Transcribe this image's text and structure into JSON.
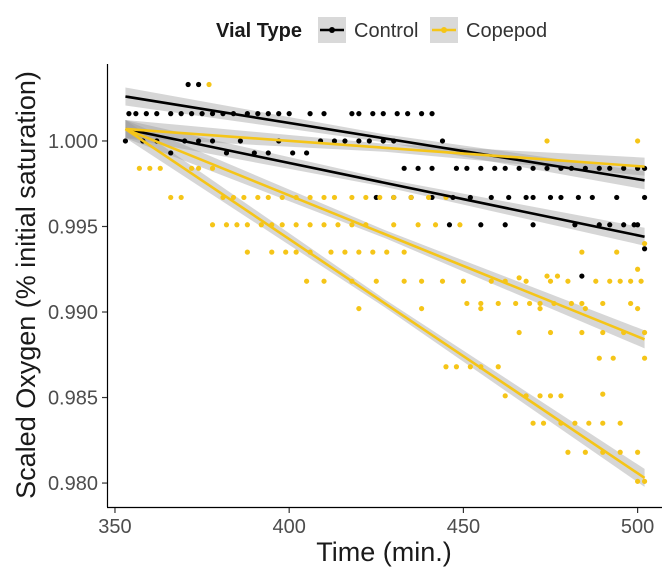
{
  "chart_data": {
    "type": "scatter",
    "xlabel": "Time (min.)",
    "ylabel": "Scaled Oxygen (% initial saturation)",
    "xlim": [
      348,
      507
    ],
    "ylim": [
      0.9786,
      1.0045
    ],
    "x_ticks": [
      350,
      400,
      450,
      500
    ],
    "x_tick_labels": [
      "350",
      "400",
      "450",
      "500"
    ],
    "y_ticks": [
      0.98,
      0.985,
      0.99,
      0.995,
      1.0
    ],
    "y_tick_labels": [
      "0.980",
      "0.985",
      "0.990",
      "0.995",
      "1.000"
    ],
    "grid": false,
    "legend": {
      "title": "Vial Type",
      "position": "top",
      "entries": [
        {
          "label": "Control",
          "color": "#000000"
        },
        {
          "label": "Copepod",
          "color": "#F5C518"
        }
      ]
    },
    "series": [
      {
        "name": "Control",
        "color": "#000000",
        "fits": [
          {
            "x": [
              353,
              502
            ],
            "y": [
              1.0026,
              0.9977
            ]
          },
          {
            "x": [
              353,
              502
            ],
            "y": [
              1.0007,
              0.9944
            ]
          }
        ],
        "points": [
          [
            353,
            1.0
          ],
          [
            354,
            1.0016
          ],
          [
            356,
            1.0016
          ],
          [
            359,
            1.0016
          ],
          [
            362,
            1.0016
          ],
          [
            366,
            1.0016
          ],
          [
            369,
            1.0016
          ],
          [
            372,
            1.0016
          ],
          [
            371,
            1.0033
          ],
          [
            374,
            1.0033
          ],
          [
            375,
            1.0016
          ],
          [
            378,
            1.0016
          ],
          [
            381,
            1.0016
          ],
          [
            384,
            1.0016
          ],
          [
            388,
            1.0016
          ],
          [
            391,
            1.0016
          ],
          [
            394,
            1.0016
          ],
          [
            397,
            1.0016
          ],
          [
            400,
            1.0016
          ],
          [
            406,
            1.0016
          ],
          [
            410,
            1.0016
          ],
          [
            418,
            1.0016
          ],
          [
            420,
            1.0016
          ],
          [
            424,
            1.0016
          ],
          [
            427,
            1.0016
          ],
          [
            431,
            1.0016
          ],
          [
            434,
            1.0016
          ],
          [
            438,
            1.0016
          ],
          [
            441,
            1.0016
          ],
          [
            358,
            1.0
          ],
          [
            362,
            1.0
          ],
          [
            366,
            0.9993
          ],
          [
            370,
            1.0
          ],
          [
            374,
            1.0
          ],
          [
            378,
            1.0
          ],
          [
            382,
            0.9993
          ],
          [
            386,
            1.0
          ],
          [
            390,
            0.9993
          ],
          [
            394,
            0.9993
          ],
          [
            397,
            1.0
          ],
          [
            401,
            0.9993
          ],
          [
            405,
            0.9993
          ],
          [
            409,
            1.0
          ],
          [
            413,
            1.0
          ],
          [
            416,
            1.0
          ],
          [
            420,
            1.0
          ],
          [
            423,
            1.0
          ],
          [
            427,
            1.0
          ],
          [
            430,
            1.0
          ],
          [
            433,
            0.9984
          ],
          [
            437,
            0.9984
          ],
          [
            441,
            0.9984
          ],
          [
            444,
            1.0
          ],
          [
            448,
            0.9984
          ],
          [
            451,
            0.9984
          ],
          [
            455,
            0.9984
          ],
          [
            459,
            0.9984
          ],
          [
            462,
            0.9984
          ],
          [
            466,
            0.9984
          ],
          [
            470,
            0.9984
          ],
          [
            474,
            0.9984
          ],
          [
            478,
            0.9984
          ],
          [
            481,
            0.9984
          ],
          [
            485,
            0.9984
          ],
          [
            489,
            0.9984
          ],
          [
            492,
            0.9984
          ],
          [
            496,
            0.9984
          ],
          [
            500,
            0.9984
          ],
          [
            502,
            0.9984
          ],
          [
            425,
            0.9967
          ],
          [
            430,
            0.9967
          ],
          [
            435,
            0.9967
          ],
          [
            441,
            0.9967
          ],
          [
            447,
            0.9967
          ],
          [
            452,
            0.9967
          ],
          [
            458,
            0.9967
          ],
          [
            463,
            0.9967
          ],
          [
            468,
            0.9967
          ],
          [
            470,
            0.9967
          ],
          [
            475,
            0.9967
          ],
          [
            478,
            0.9967
          ],
          [
            483,
            0.9967
          ],
          [
            487,
            0.9967
          ],
          [
            494,
            0.9967
          ],
          [
            502,
            0.9967
          ],
          [
            446,
            0.9951
          ],
          [
            455,
            0.9951
          ],
          [
            462,
            0.9951
          ],
          [
            470,
            0.9951
          ],
          [
            482,
            0.9951
          ],
          [
            489,
            0.9951
          ],
          [
            492,
            0.9951
          ],
          [
            496,
            0.9951
          ],
          [
            499,
            0.9951
          ],
          [
            500,
            0.9951
          ],
          [
            502,
            0.9937
          ],
          [
            484,
            0.9921
          ]
        ]
      },
      {
        "name": "Copepod",
        "color": "#F5C518",
        "fits": [
          {
            "x": [
              353,
              502
            ],
            "y": [
              1.0007,
              0.9985
            ]
          },
          {
            "x": [
              353,
              502
            ],
            "y": [
              1.0007,
              0.9884
            ]
          },
          {
            "x": [
              353,
              502
            ],
            "y": [
              1.0007,
              0.9803
            ]
          }
        ],
        "points": [
          [
            377,
            1.0033
          ],
          [
            357,
            0.9984
          ],
          [
            360,
            0.9984
          ],
          [
            363,
            0.9984
          ],
          [
            366,
            0.9967
          ],
          [
            369,
            0.9967
          ],
          [
            372,
            0.9984
          ],
          [
            374,
            0.9984
          ],
          [
            378,
            0.9984
          ],
          [
            381,
            0.9967
          ],
          [
            384,
            0.9967
          ],
          [
            387,
            0.9967
          ],
          [
            391,
            0.9967
          ],
          [
            394,
            0.9967
          ],
          [
            398,
            0.9967
          ],
          [
            402,
            0.9967
          ],
          [
            406,
            0.9967
          ],
          [
            410,
            0.9967
          ],
          [
            413,
            0.9967
          ],
          [
            418,
            0.9967
          ],
          [
            422,
            0.9967
          ],
          [
            426,
            0.9967
          ],
          [
            430,
            0.9967
          ],
          [
            435,
            0.9967
          ],
          [
            440,
            0.9967
          ],
          [
            445,
            0.9967
          ],
          [
            378,
            0.9951
          ],
          [
            382,
            0.9951
          ],
          [
            385,
            0.9951
          ],
          [
            388,
            0.9951
          ],
          [
            392,
            0.9951
          ],
          [
            395,
            0.9951
          ],
          [
            398,
            0.9951
          ],
          [
            402,
            0.9951
          ],
          [
            406,
            0.9951
          ],
          [
            410,
            0.9951
          ],
          [
            414,
            0.9951
          ],
          [
            418,
            0.9951
          ],
          [
            422,
            0.9951
          ],
          [
            430,
            0.9951
          ],
          [
            437,
            0.9951
          ],
          [
            442,
            0.9951
          ],
          [
            449,
            0.9951
          ],
          [
            388,
            0.9935
          ],
          [
            395,
            0.9935
          ],
          [
            399,
            0.9935
          ],
          [
            402,
            0.9935
          ],
          [
            406,
            0.9935
          ],
          [
            412,
            0.9935
          ],
          [
            416,
            0.9935
          ],
          [
            420,
            0.9935
          ],
          [
            424,
            0.9935
          ],
          [
            428,
            0.9935
          ],
          [
            433,
            0.9935
          ],
          [
            405,
            0.9918
          ],
          [
            410,
            0.9918
          ],
          [
            418,
            0.9918
          ],
          [
            425,
            0.9918
          ],
          [
            433,
            0.9918
          ],
          [
            438,
            0.9918
          ],
          [
            444,
            0.9918
          ],
          [
            450,
            0.9918
          ],
          [
            458,
            0.9918
          ],
          [
            462,
            0.9918
          ],
          [
            468,
            0.9918
          ],
          [
            475,
            0.9918
          ],
          [
            480,
            0.9918
          ],
          [
            488,
            0.9918
          ],
          [
            492,
            0.9918
          ],
          [
            495,
            0.9918
          ],
          [
            498,
            0.9918
          ],
          [
            501,
            0.9918
          ],
          [
            451,
            0.9905
          ],
          [
            455,
            0.9905
          ],
          [
            460,
            0.9905
          ],
          [
            465,
            0.9905
          ],
          [
            469,
            0.9905
          ],
          [
            472,
            0.9905
          ],
          [
            476,
            0.9905
          ],
          [
            481,
            0.9905
          ],
          [
            484,
            0.9905
          ],
          [
            490,
            0.9905
          ],
          [
            498,
            0.9905
          ],
          [
            420,
            0.9902
          ],
          [
            438,
            0.9902
          ],
          [
            455,
            0.9902
          ],
          [
            472,
            0.9902
          ],
          [
            485,
            0.9902
          ],
          [
            500,
            0.9902
          ],
          [
            466,
            0.9888
          ],
          [
            475,
            0.9888
          ],
          [
            484,
            0.9888
          ],
          [
            490,
            0.9888
          ],
          [
            496,
            0.9888
          ],
          [
            502,
            0.9888
          ],
          [
            489,
            0.9873
          ],
          [
            493,
            0.9873
          ],
          [
            502,
            0.9873
          ],
          [
            445,
            0.9868
          ],
          [
            448,
            0.9868
          ],
          [
            452,
            0.9868
          ],
          [
            455,
            0.9868
          ],
          [
            460,
            0.9868
          ],
          [
            462,
            0.9851
          ],
          [
            468,
            0.9851
          ],
          [
            472,
            0.9851
          ],
          [
            475,
            0.9851
          ],
          [
            478,
            0.9851
          ],
          [
            470,
            0.9835
          ],
          [
            473,
            0.9835
          ],
          [
            478,
            0.9835
          ],
          [
            482,
            0.9835
          ],
          [
            486,
            0.9835
          ],
          [
            490,
            0.9835
          ],
          [
            495,
            0.9835
          ],
          [
            480,
            0.9818
          ],
          [
            485,
            0.9818
          ],
          [
            490,
            0.9818
          ],
          [
            495,
            0.9818
          ],
          [
            500,
            0.9818
          ],
          [
            500,
            0.9801
          ],
          [
            502,
            0.9801
          ],
          [
            490,
            0.9852
          ],
          [
            466,
            0.992
          ],
          [
            474,
            0.9921
          ],
          [
            477,
            0.9921
          ],
          [
            484,
            0.9935
          ],
          [
            494,
            0.9935
          ],
          [
            500,
            0.9925
          ],
          [
            502,
            0.994
          ],
          [
            474,
            1.0
          ],
          [
            500,
            1.0
          ]
        ]
      }
    ]
  }
}
